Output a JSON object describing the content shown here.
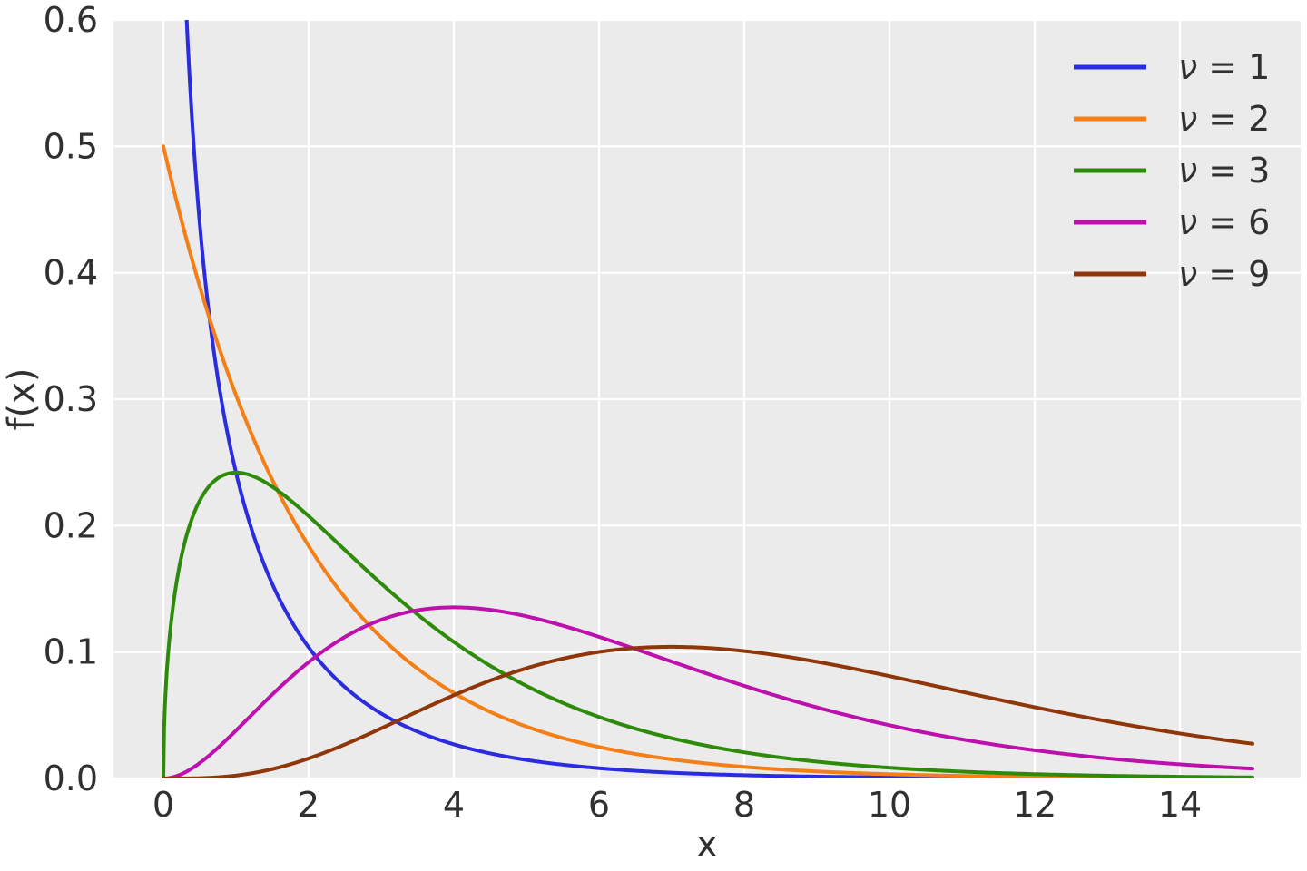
{
  "figure": {
    "background": "#ffffff",
    "plot_background": "#ebebeb",
    "grid_color": "#ffffff",
    "text_color": "#303030"
  },
  "chart_data": {
    "type": "line",
    "title": "",
    "subtitle": "",
    "xlabel": "x",
    "ylabel": "f(x)",
    "distribution": "chi-square probability density function",
    "xlim": [
      -0.69,
      15.69
    ],
    "ylim": [
      0,
      0.6
    ],
    "grid": true,
    "legend_position": "upper right",
    "xticks": [
      0,
      2,
      4,
      6,
      8,
      10,
      12,
      14
    ],
    "xtick_labels": [
      "0",
      "2",
      "4",
      "6",
      "8",
      "10",
      "12",
      "14"
    ],
    "yticks": [
      0.0,
      0.1,
      0.2,
      0.3,
      0.4,
      0.5,
      0.6
    ],
    "ytick_labels": [
      "0.0",
      "0.1",
      "0.2",
      "0.3",
      "0.4",
      "0.5",
      "0.6"
    ],
    "sample_x": [
      0,
      1,
      2,
      3,
      4,
      5,
      6,
      7,
      8,
      9,
      10,
      11,
      12,
      13,
      14,
      15
    ],
    "series": [
      {
        "label": "ν = 1",
        "sym": "ν",
        "rest": "= 1",
        "df": 1,
        "color": "#2b2be0",
        "values": [
          null,
          0.242,
          0.1038,
          0.0514,
          0.027,
          0.0146,
          0.0081,
          0.0046,
          0.0026,
          0.0015,
          0.0009,
          0.0005,
          0.0003,
          0.0002,
          0.0001,
          0.0001
        ]
      },
      {
        "label": "ν = 2",
        "sym": "ν",
        "rest": "= 2",
        "df": 2,
        "color": "#f57f17",
        "values": [
          0.5,
          0.3033,
          0.1839,
          0.1116,
          0.0677,
          0.041,
          0.0249,
          0.0151,
          0.0092,
          0.0056,
          0.0034,
          0.002,
          0.0012,
          0.0008,
          0.0005,
          0.0003
        ]
      },
      {
        "label": "ν = 3",
        "sym": "ν",
        "rest": "= 3",
        "df": 3,
        "color": "#2e8b09",
        "values": [
          0,
          0.242,
          0.2076,
          0.1542,
          0.108,
          0.0732,
          0.0487,
          0.0319,
          0.0207,
          0.0133,
          0.0085,
          0.0054,
          0.0034,
          0.0022,
          0.0014,
          0.0009
        ]
      },
      {
        "label": "ν = 6",
        "sym": "ν",
        "rest": "= 6",
        "df": 6,
        "color": "#be10ac",
        "values": [
          0,
          0.0379,
          0.092,
          0.1255,
          0.1353,
          0.1283,
          0.112,
          0.0925,
          0.0733,
          0.0562,
          0.0421,
          0.0309,
          0.0223,
          0.0159,
          0.0112,
          0.0078
        ]
      },
      {
        "label": "ν = 9",
        "sym": "ν",
        "rest": "= 9",
        "df": 9,
        "color": "#8f370a",
        "values": [
          0,
          0.0023,
          0.0158,
          0.0397,
          0.0658,
          0.0872,
          0.1001,
          0.1041,
          0.1008,
          0.0923,
          0.081,
          0.0686,
          0.0564,
          0.0453,
          0.0356,
          0.0275
        ]
      }
    ]
  }
}
